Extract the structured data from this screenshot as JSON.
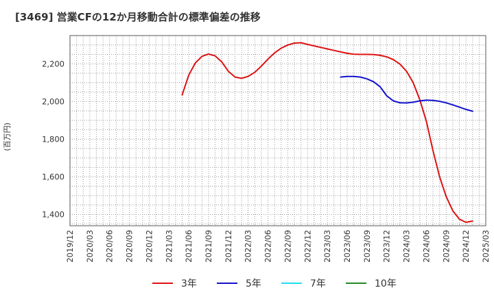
{
  "chart_data": {
    "type": "line",
    "title": "[3469]  営業CFの12か月移動合計の標準偏差の推移",
    "ylabel": "(百万円)",
    "xlabel": "",
    "ylim": [
      1340,
      2350
    ],
    "yticks": [
      1400,
      1600,
      1800,
      2000,
      2200
    ],
    "ytick_labels": [
      "1,400",
      "1,600",
      "1,800",
      "2,000",
      "2,200"
    ],
    "xlim": [
      "2019-12",
      "2025-03"
    ],
    "xtick_labels": [
      "2019/12",
      "2020/03",
      "2020/06",
      "2020/09",
      "2020/12",
      "2021/03",
      "2021/06",
      "2021/09",
      "2021/12",
      "2022/03",
      "2022/06",
      "2022/09",
      "2022/12",
      "2023/03",
      "2023/06",
      "2023/09",
      "2023/12",
      "2024/03",
      "2024/06",
      "2024/09",
      "2024/12",
      "2025/03"
    ],
    "grid": true,
    "legend_position": "bottom",
    "series": [
      {
        "name": "3年",
        "color": "#dd1111",
        "start": "2021-05",
        "values": [
          2035,
          2140,
          2205,
          2240,
          2252,
          2242,
          2210,
          2160,
          2130,
          2123,
          2133,
          2155,
          2188,
          2225,
          2258,
          2283,
          2300,
          2310,
          2312,
          2303,
          2295,
          2287,
          2279,
          2271,
          2263,
          2256,
          2251,
          2250,
          2250,
          2249,
          2245,
          2237,
          2222,
          2198,
          2160,
          2100,
          2010,
          1895,
          1740,
          1600,
          1495,
          1420,
          1375,
          1358,
          1365
        ]
      },
      {
        "name": "5年",
        "color": "#1111cc",
        "start": "2023-05",
        "values": [
          2130,
          2133,
          2133,
          2130,
          2120,
          2105,
          2078,
          2030,
          2003,
          1993,
          1992,
          1996,
          2003,
          2007,
          2006,
          2001,
          1993,
          1982,
          1970,
          1958,
          1948
        ]
      },
      {
        "name": "7年",
        "color": "#22ddee",
        "start": "",
        "values": []
      },
      {
        "name": "10年",
        "color": "#228822",
        "start": "",
        "values": []
      }
    ]
  }
}
